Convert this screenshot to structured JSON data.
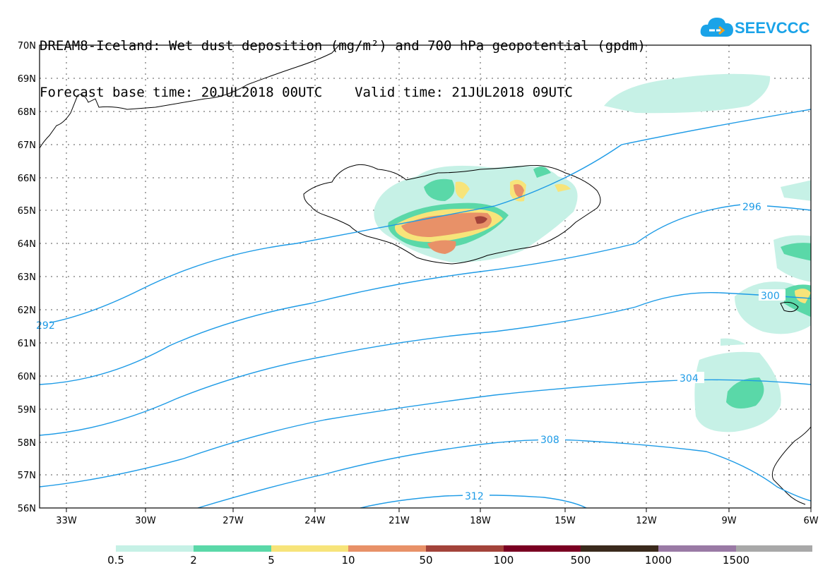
{
  "title": {
    "line1": "DREAM8-Iceland: Wet dust deposition (mg/m²) and 700 hPa geopotential (gpdm)",
    "line2": "Forecast base time: 20JUL2018 00UTC    Valid time: 21JUL2018 09UTC"
  },
  "logo": {
    "text": "SEEVCCC",
    "icon": "cloud-icon"
  },
  "map": {
    "lat_labels": [
      "70N",
      "69N",
      "68N",
      "67N",
      "66N",
      "65N",
      "64N",
      "63N",
      "62N",
      "61N",
      "60N",
      "59N",
      "58N",
      "57N",
      "56N"
    ],
    "lon_labels": [
      "33W",
      "30W",
      "27W",
      "24W",
      "21W",
      "18W",
      "15W",
      "12W",
      "9W",
      "6W"
    ],
    "contour_labels": [
      "292",
      "296",
      "300",
      "304",
      "308",
      "312"
    ],
    "contour_color": "#1e9be6"
  },
  "legend": {
    "colors": [
      "#c6f1e6",
      "#5ad8a8",
      "#f7e47a",
      "#e89168",
      "#a3433a",
      "#7a0022",
      "#3a2a1c",
      "#9a7aa5",
      "#a8a8a8"
    ],
    "labels": [
      "0.5",
      "2",
      "5",
      "10",
      "50",
      "100",
      "500",
      "1000",
      "1500"
    ]
  }
}
